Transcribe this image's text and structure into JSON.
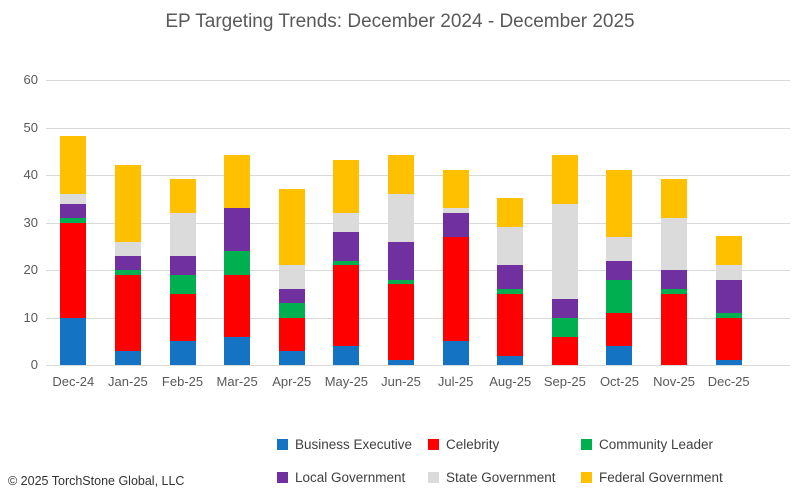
{
  "footer": {
    "copyright": "© 2025 TorchStone Global, LLC"
  },
  "chart_data": {
    "type": "bar",
    "stacked": true,
    "title": "EP Targeting Trends: December 2024 - December 2025",
    "categories": [
      "Dec-24",
      "Jan-25",
      "Feb-25",
      "Mar-25",
      "Apr-25",
      "May-25",
      "Jun-25",
      "Jul-25",
      "Aug-25",
      "Sep-25",
      "Oct-25",
      "Nov-25",
      "Dec-25"
    ],
    "series": [
      {
        "name": "Business Executive",
        "color": "#1573C4",
        "values": [
          10,
          3,
          5,
          6,
          3,
          4,
          1,
          5,
          2,
          0,
          4,
          0,
          1
        ]
      },
      {
        "name": "Celebrity",
        "color": "#FF0000",
        "values": [
          20,
          16,
          10,
          13,
          7,
          17,
          16,
          22,
          13,
          6,
          7,
          15,
          9
        ]
      },
      {
        "name": "Community Leader",
        "color": "#00B050",
        "values": [
          1,
          1,
          4,
          5,
          3,
          1,
          1,
          0,
          1,
          4,
          7,
          1,
          1
        ]
      },
      {
        "name": "Local Government",
        "color": "#7030A0",
        "values": [
          3,
          3,
          4,
          9,
          3,
          6,
          8,
          5,
          5,
          4,
          4,
          4,
          7
        ]
      },
      {
        "name": "State Government",
        "color": "#DBDBDB",
        "values": [
          2,
          3,
          9,
          0,
          5,
          4,
          10,
          1,
          8,
          20,
          5,
          11,
          3
        ]
      },
      {
        "name": "Federal Government",
        "color": "#FFC000",
        "values": [
          12,
          16,
          7,
          11,
          16,
          11,
          8,
          8,
          6,
          10,
          14,
          8,
          6
        ]
      }
    ],
    "totals": [
      48,
      42,
      39,
      44,
      37,
      43,
      44,
      41,
      35,
      44,
      41,
      39,
      27
    ],
    "ylim": [
      0,
      60
    ],
    "yticks": [
      0,
      10,
      20,
      30,
      40,
      50,
      60
    ],
    "grid": "horizontal",
    "gridline_color": "#D9D9D9",
    "axis_text_color": "#595959",
    "legend_position": "bottom"
  }
}
